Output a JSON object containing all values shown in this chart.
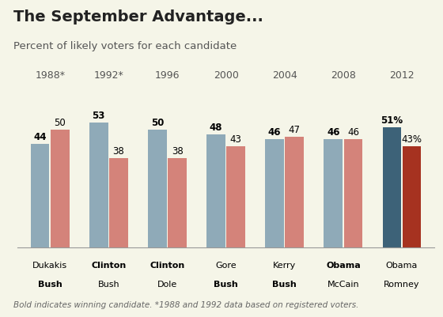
{
  "title": "The September Advantage...",
  "subtitle": "Percent of likely voters for each candidate",
  "footnote": "Bold indicates winning candidate. *1988 and 1992 data based on registered voters.",
  "groups": [
    {
      "year": "1988*",
      "dem_val": 44,
      "rep_val": 50,
      "dem_label": "44",
      "rep_label": "50",
      "dem_name": "Dukakis",
      "rep_name": "Bush",
      "dem_bold": false,
      "rep_bold": true,
      "dem_highlight": false,
      "rep_highlight": false
    },
    {
      "year": "1992*",
      "dem_val": 53,
      "rep_val": 38,
      "dem_label": "53",
      "rep_label": "38",
      "dem_name": "Clinton",
      "rep_name": "Bush",
      "dem_bold": true,
      "rep_bold": false,
      "dem_highlight": false,
      "rep_highlight": false
    },
    {
      "year": "1996",
      "dem_val": 50,
      "rep_val": 38,
      "dem_label": "50",
      "rep_label": "38",
      "dem_name": "Clinton",
      "rep_name": "Dole",
      "dem_bold": true,
      "rep_bold": false,
      "dem_highlight": false,
      "rep_highlight": false
    },
    {
      "year": "2000",
      "dem_val": 48,
      "rep_val": 43,
      "dem_label": "48",
      "rep_label": "43",
      "dem_name": "Gore",
      "rep_name": "Bush",
      "dem_bold": false,
      "rep_bold": true,
      "dem_highlight": false,
      "rep_highlight": false
    },
    {
      "year": "2004",
      "dem_val": 46,
      "rep_val": 47,
      "dem_label": "46",
      "rep_label": "47",
      "dem_name": "Kerry",
      "rep_name": "Bush",
      "dem_bold": false,
      "rep_bold": true,
      "dem_highlight": false,
      "rep_highlight": false
    },
    {
      "year": "2008",
      "dem_val": 46,
      "rep_val": 46,
      "dem_label": "46",
      "rep_label": "46",
      "dem_name": "Obama",
      "rep_name": "McCain",
      "dem_bold": true,
      "rep_bold": false,
      "dem_highlight": false,
      "rep_highlight": false
    },
    {
      "year": "2012",
      "dem_val": 51,
      "rep_val": 43,
      "dem_label": "51%",
      "rep_label": "43%",
      "dem_name": "Obama",
      "rep_name": "Romney",
      "dem_bold": false,
      "rep_bold": false,
      "dem_highlight": true,
      "rep_highlight": true
    }
  ],
  "dem_color": "#8faab8",
  "rep_color": "#d4837a",
  "dem_highlight_color": "#3d6278",
  "rep_highlight_color": "#a63220",
  "bar_width": 0.32,
  "ylim": [
    0,
    62
  ],
  "bg_color": "#f5f5e8",
  "title_fontsize": 14,
  "subtitle_fontsize": 9.5,
  "label_fontsize": 8.5,
  "year_fontsize": 9,
  "name_fontsize": 8,
  "footnote_fontsize": 7.5
}
